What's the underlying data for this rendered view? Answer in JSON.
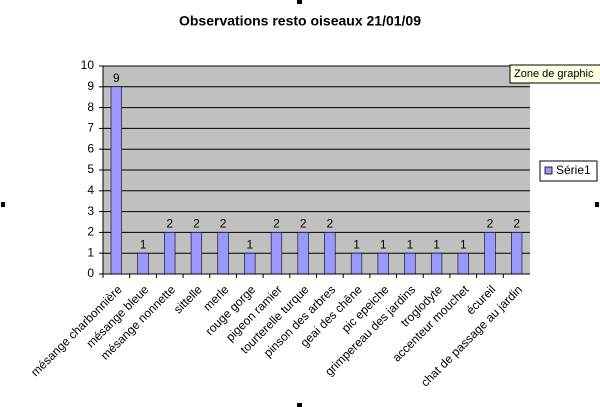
{
  "chart_data": {
    "type": "bar",
    "title": "Observations resto oiseaux 21/01/09",
    "categories": [
      "mésange charbonnière",
      "mésange bleue",
      "mésange nonnette",
      "sittelle",
      "merle",
      "rouge gorge",
      "pigeon ramier",
      "tourterelle turque",
      "pinson des arbres",
      "geai des chêne",
      "pic epeiche",
      "grimpereau des jardins",
      "troglodyte",
      "accenteur mouchet",
      "écureil",
      "chat de passage au jardin"
    ],
    "series": [
      {
        "name": "Série1",
        "color": "#9999ff",
        "values": [
          9,
          1,
          2,
          2,
          2,
          1,
          2,
          2,
          2,
          1,
          1,
          1,
          1,
          1,
          2,
          2
        ]
      }
    ],
    "ylim": [
      0,
      10
    ],
    "yticks": [
      0,
      1,
      2,
      3,
      4,
      5,
      6,
      7,
      8,
      9,
      10
    ],
    "grid": true,
    "legend": "right",
    "tooltip": "Zone de graphic"
  }
}
